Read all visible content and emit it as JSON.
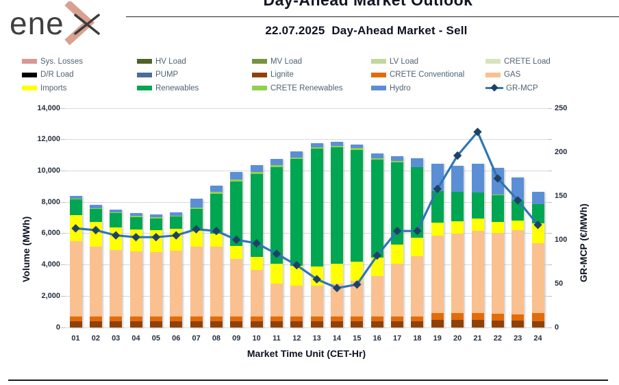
{
  "header": {
    "logo_text": "ene",
    "title": "Day-Ahead Market Outlook",
    "subtitle": "22.07.2025  Day-Ahead Market - Sell"
  },
  "chart_data": {
    "type": "bar",
    "subtype": "stacked-bars-with-line-overlay",
    "title": "22.07.2025 Day-Ahead Market - Sell",
    "grid": true,
    "legend_position": "top",
    "categories": [
      "01",
      "02",
      "03",
      "04",
      "05",
      "06",
      "07",
      "08",
      "09",
      "10",
      "11",
      "12",
      "13",
      "14",
      "15",
      "16",
      "17",
      "18",
      "19",
      "20",
      "21",
      "22",
      "23",
      "24"
    ],
    "series": [
      {
        "name": "Lignite",
        "color": "#8f4108",
        "values": [
          410,
          400,
          400,
          400,
          400,
          400,
          400,
          400,
          400,
          400,
          400,
          400,
          400,
          400,
          400,
          400,
          400,
          400,
          470,
          470,
          470,
          450,
          430,
          400
        ]
      },
      {
        "name": "CRETE Conventional",
        "color": "#e26b0a",
        "values": [
          290,
          300,
          300,
          300,
          300,
          300,
          300,
          300,
          300,
          300,
          300,
          300,
          300,
          300,
          300,
          300,
          300,
          300,
          440,
          440,
          440,
          430,
          420,
          510
        ]
      },
      {
        "name": "GAS",
        "color": "#fac090",
        "values": [
          4810,
          4450,
          4230,
          4150,
          4120,
          4180,
          4450,
          4450,
          3690,
          2990,
          2110,
          1960,
          1960,
          2080,
          2260,
          2580,
          3350,
          3860,
          4970,
          5090,
          5240,
          5150,
          5360,
          4470
        ]
      },
      {
        "name": "Imports",
        "color": "#ffff00",
        "values": [
          1680,
          1600,
          1460,
          1430,
          1390,
          1430,
          1050,
          860,
          830,
          800,
          1270,
          1300,
          1240,
          1270,
          1240,
          1170,
          1240,
          1170,
          800,
          790,
          790,
          730,
          610,
          1270
        ]
      },
      {
        "name": "Renewables",
        "color": "#00a651",
        "values": [
          990,
          820,
          920,
          780,
          770,
          760,
          1390,
          2520,
          4110,
          5330,
          6180,
          6800,
          7500,
          7450,
          7150,
          6250,
          5260,
          4490,
          2050,
          1870,
          1690,
          1680,
          1290,
          1210
        ]
      },
      {
        "name": "CRETE Renewables",
        "color": "#92d050",
        "values": [
          60,
          60,
          60,
          90,
          60,
          80,
          60,
          120,
          120,
          120,
          110,
          110,
          100,
          100,
          100,
          120,
          70,
          40,
          0,
          0,
          0,
          50,
          0,
          0
        ]
      },
      {
        "name": "Hydro",
        "color": "#5b8fd5",
        "values": [
          160,
          190,
          160,
          160,
          180,
          220,
          560,
          410,
          480,
          440,
          400,
          380,
          250,
          260,
          230,
          290,
          340,
          560,
          1750,
          1680,
          1820,
          1720,
          1460,
          800
        ]
      }
    ],
    "line_series": {
      "name": "GR-MCP",
      "line_color": "#2e75b6",
      "marker_color": "#1f4264",
      "marker": "diamond",
      "values": [
        113,
        111,
        105,
        103,
        103,
        105,
        112,
        110,
        100,
        96,
        84,
        71,
        55,
        45,
        49,
        82,
        110,
        110,
        158,
        196,
        223,
        170,
        145,
        117
      ]
    },
    "legend": [
      {
        "label": "Sys. Losses",
        "color": "#d99694",
        "type": "box"
      },
      {
        "label": "HV Load",
        "color": "#4f6228",
        "type": "box"
      },
      {
        "label": "MV Load",
        "color": "#77933c",
        "type": "box"
      },
      {
        "label": "LV Load",
        "color": "#c3d69b",
        "type": "box"
      },
      {
        "label": "CRETE Load",
        "color": "#d7e4bc",
        "type": "box"
      },
      {
        "label": "D/R Load",
        "color": "#000000",
        "type": "box"
      },
      {
        "label": "PUMP",
        "color": "#4a6d9b",
        "type": "box"
      },
      {
        "label": "Lignite",
        "color": "#8f4108",
        "type": "box"
      },
      {
        "label": "CRETE Conventional",
        "color": "#e26b0a",
        "type": "box"
      },
      {
        "label": "GAS",
        "color": "#fac090",
        "type": "box"
      },
      {
        "label": "Imports",
        "color": "#ffff00",
        "type": "box"
      },
      {
        "label": "Renewables",
        "color": "#00a651",
        "type": "box"
      },
      {
        "label": "CRETE Renewables",
        "color": "#92d050",
        "type": "box"
      },
      {
        "label": "Hydro",
        "color": "#5b8fd5",
        "type": "box"
      },
      {
        "label": "GR-MCP",
        "color": "#1f4264",
        "type": "line-marker",
        "line_color": "#2e75b6"
      }
    ],
    "axes": {
      "left": {
        "title": "Volume (MWh)",
        "min": 0,
        "max": 14000,
        "step": 2000,
        "tick_labels": [
          "0",
          "2,000",
          "4,000",
          "6,000",
          "8,000",
          "10,000",
          "12,000",
          "14,000"
        ]
      },
      "right": {
        "title": "GR-MCP (€/MWh)",
        "min": 0,
        "max": 250,
        "step": 50,
        "tick_labels": [
          "0",
          "50",
          "100",
          "150",
          "200",
          "250"
        ]
      },
      "x": {
        "title": "Market Time Unit (CET-Hr)"
      }
    }
  }
}
